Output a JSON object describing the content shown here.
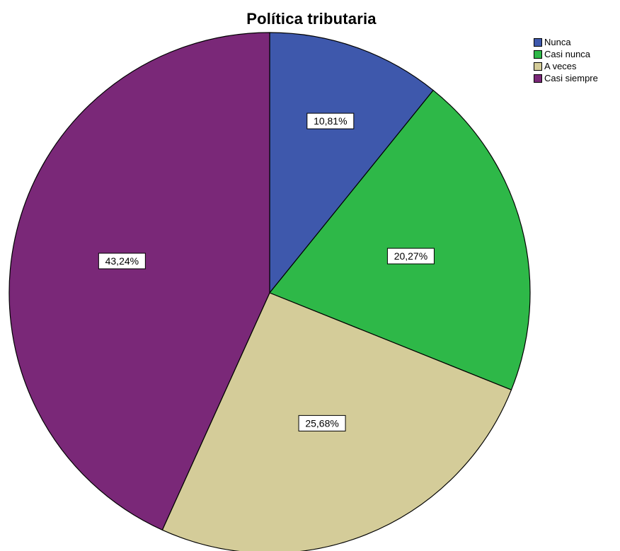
{
  "chart_data": {
    "type": "pie",
    "title": "Política tributaria",
    "legend_position": "top-right",
    "start_angle_deg": 0,
    "direction": "clockwise",
    "slices": [
      {
        "label": "Nunca",
        "value": 10.81,
        "display": "10,81%",
        "color": "#3e58ac"
      },
      {
        "label": "Casi nunca",
        "value": 20.27,
        "display": "20,27%",
        "color": "#2eb848"
      },
      {
        "label": "A veces",
        "value": 25.68,
        "display": "25,68%",
        "color": "#d4cc99"
      },
      {
        "label": "Casi siempre",
        "value": 43.24,
        "display": "43,24%",
        "color": "#7a2878"
      }
    ]
  }
}
